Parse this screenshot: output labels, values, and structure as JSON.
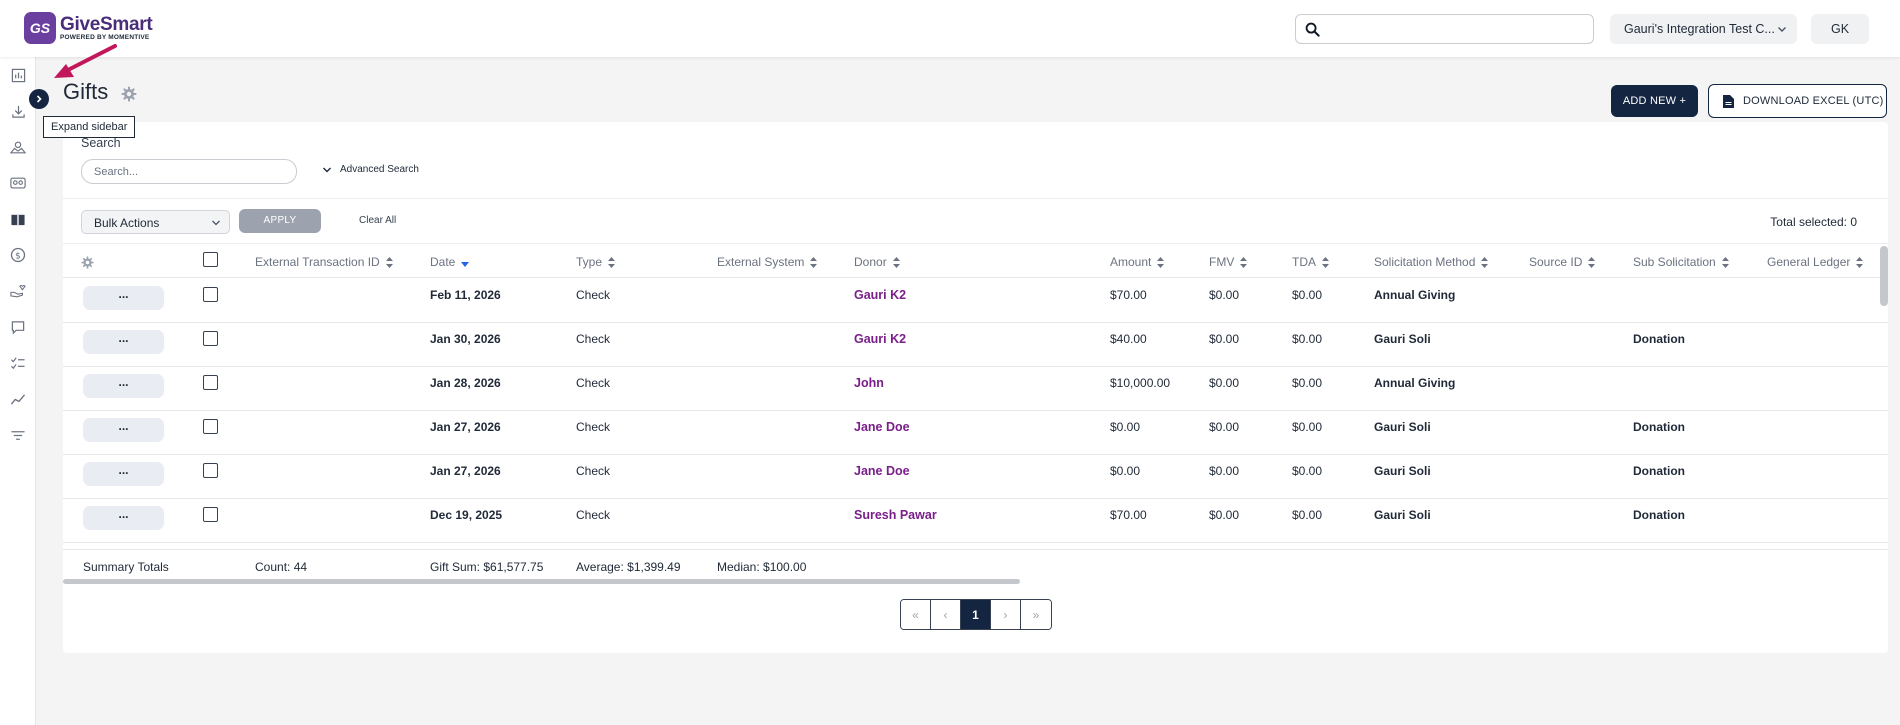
{
  "header": {
    "logo_mark": "GS",
    "logo_name": "GiveSmart",
    "logo_sub": "POWERED BY MOMENTIVE",
    "search_placeholder": "",
    "org_name": "Gauri's Integration Test C...",
    "avatar_initials": "GK"
  },
  "sidebar": {
    "expand_tooltip": "Expand sidebar",
    "items": [
      {
        "icon": "chart-icon"
      },
      {
        "icon": "download-icon"
      },
      {
        "icon": "donation-icon"
      },
      {
        "icon": "people-icon"
      },
      {
        "icon": "gift-box-icon"
      },
      {
        "icon": "dollar-circle-icon"
      },
      {
        "icon": "hand-heart-icon"
      },
      {
        "icon": "chat-icon"
      },
      {
        "icon": "checklist-icon"
      },
      {
        "icon": "trend-icon"
      },
      {
        "icon": "filter-icon"
      }
    ]
  },
  "page": {
    "title": "Gifts",
    "add_new_label": "ADD NEW +",
    "download_label": "DOWNLOAD EXCEL (UTC)"
  },
  "search": {
    "label": "Search",
    "placeholder": "Search...",
    "advanced_label": "Advanced Search"
  },
  "toolbar": {
    "bulk_actions_label": "Bulk Actions",
    "apply_label": "APPLY",
    "clear_all_label": "Clear All",
    "total_selected": "Total selected: 0"
  },
  "table": {
    "columns": [
      "External Transaction ID",
      "Date",
      "Type",
      "External System",
      "Donor",
      "Amount",
      "FMV",
      "TDA",
      "Solicitation Method",
      "Source ID",
      "Sub Solicitation",
      "General Ledger"
    ],
    "action_label": "...",
    "rows": [
      {
        "date": "Feb 11, 2026",
        "type": "Check",
        "donor": "Gauri K2",
        "amount": "$70.00",
        "fmv": "$0.00",
        "tda": "$0.00",
        "solicitation": "Annual Giving",
        "sub_solicitation": ""
      },
      {
        "date": "Jan 30, 2026",
        "type": "Check",
        "donor": "Gauri K2",
        "amount": "$40.00",
        "fmv": "$0.00",
        "tda": "$0.00",
        "solicitation": "Gauri Soli",
        "sub_solicitation": "Donation"
      },
      {
        "date": "Jan 28, 2026",
        "type": "Check",
        "donor": "John",
        "amount": "$10,000.00",
        "fmv": "$0.00",
        "tda": "$0.00",
        "solicitation": "Annual Giving",
        "sub_solicitation": ""
      },
      {
        "date": "Jan 27, 2026",
        "type": "Check",
        "donor": "Jane Doe",
        "amount": "$0.00",
        "fmv": "$0.00",
        "tda": "$0.00",
        "solicitation": "Gauri Soli",
        "sub_solicitation": "Donation"
      },
      {
        "date": "Jan 27, 2026",
        "type": "Check",
        "donor": "Jane Doe",
        "amount": "$0.00",
        "fmv": "$0.00",
        "tda": "$0.00",
        "solicitation": "Gauri Soli",
        "sub_solicitation": "Donation"
      },
      {
        "date": "Dec 19, 2025",
        "type": "Check",
        "donor": "Suresh Pawar",
        "amount": "$70.00",
        "fmv": "$0.00",
        "tda": "$0.00",
        "solicitation": "Gauri Soli",
        "sub_solicitation": "Donation"
      }
    ],
    "summary": {
      "label": "Summary Totals",
      "count": "Count: 44",
      "gift_sum": "Gift Sum: $61,577.75",
      "average": "Average: $1,399.49",
      "median": "Median: $100.00"
    }
  },
  "pagination": {
    "first": "«",
    "prev": "‹",
    "current": "1",
    "next": "›",
    "last": "»"
  },
  "colors": {
    "brand": "#6b3fa0",
    "navy": "#132540",
    "donor_link": "#7a1f8a",
    "annotation_arrow": "#c2185b"
  }
}
